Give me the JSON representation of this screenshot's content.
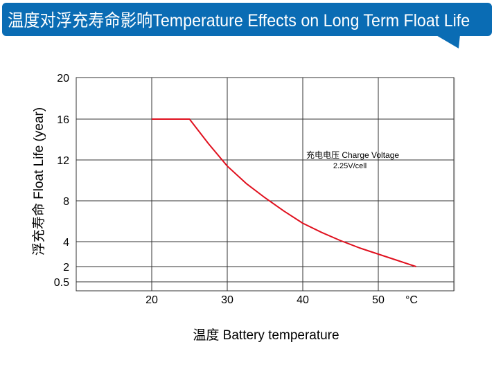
{
  "header": {
    "title": "温度对浮充寿命影响Temperature Effects on Long Term Float Life",
    "color": "#0a6cb4"
  },
  "chart_data": {
    "type": "line",
    "title": "温度对浮充寿命影响Temperature Effects on Long Term Float Life",
    "xlabel": "温度  Battery temperature",
    "ylabel": "浮充寿命  Float Life (year)",
    "x_unit": "°C",
    "x_ticks": [
      20,
      30,
      40,
      50
    ],
    "y_ticks": [
      20,
      16,
      12,
      8,
      4,
      2,
      0.5
    ],
    "xlim": [
      10,
      60
    ],
    "grid": true,
    "annotation": {
      "line1": "充电电压 Charge Voltage",
      "line2": "2.25V/cell"
    },
    "series": [
      {
        "color": "#e0101e",
        "x": [
          20,
          25,
          27.5,
          30,
          32.5,
          35,
          37.5,
          40,
          42.5,
          45,
          47.5,
          50,
          52.5,
          55
        ],
        "y": [
          16,
          16,
          13.6,
          11.4,
          9.7,
          8.3,
          7.0,
          5.8,
          4.9,
          4.1,
          3.5,
          3.0,
          2.5,
          2.0
        ]
      }
    ]
  }
}
